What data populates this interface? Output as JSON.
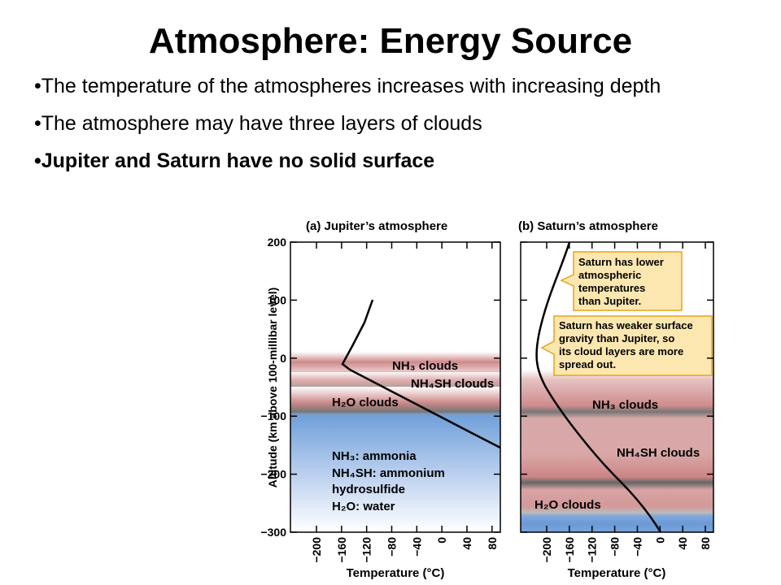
{
  "slide": {
    "title": "Atmosphere: Energy Source",
    "bullets": [
      "•The temperature of the atmospheres increases with increasing depth",
      "•The atmosphere may have three layers of clouds",
      "•Jupiter and Saturn have no solid surface"
    ]
  },
  "figure": {
    "y_axis_label": "Altitude (km above 100-millibar level)",
    "x_axis_label": "Temperature (°C)",
    "y_ticks": [
      "200",
      "100",
      "0",
      "−100",
      "−200",
      "−300"
    ],
    "x_ticks": [
      "−200",
      "−160",
      "−120",
      "−80",
      "−40",
      "0",
      "40",
      "80"
    ],
    "panel_a": {
      "heading": "(a) Jupiter’s atmosphere",
      "clouds": [
        "NH₃ clouds",
        "NH₄SH clouds",
        "H₂O clouds"
      ],
      "legend": [
        "NH₃: ammonia",
        "NH₄SH: ammonium",
        "hydrosulfide",
        "H₂O: water"
      ]
    },
    "panel_b": {
      "heading": "(b) Saturn’s atmosphere",
      "clouds": [
        "NH₃ clouds",
        "NH₄SH clouds",
        "H₂O clouds"
      ],
      "callout_1": [
        "Saturn has lower",
        "atmospheric",
        "temperatures",
        "than Jupiter."
      ],
      "callout_2": [
        "Saturn has weaker surface",
        "gravity than Jupiter, so",
        "its cloud layers are more",
        "spread out."
      ]
    },
    "colors": {
      "cloud_pink": "#cc8080",
      "water_blue": "#6f9fd8",
      "callout_fill": "#fde7b0",
      "callout_border": "#e8a317"
    }
  }
}
